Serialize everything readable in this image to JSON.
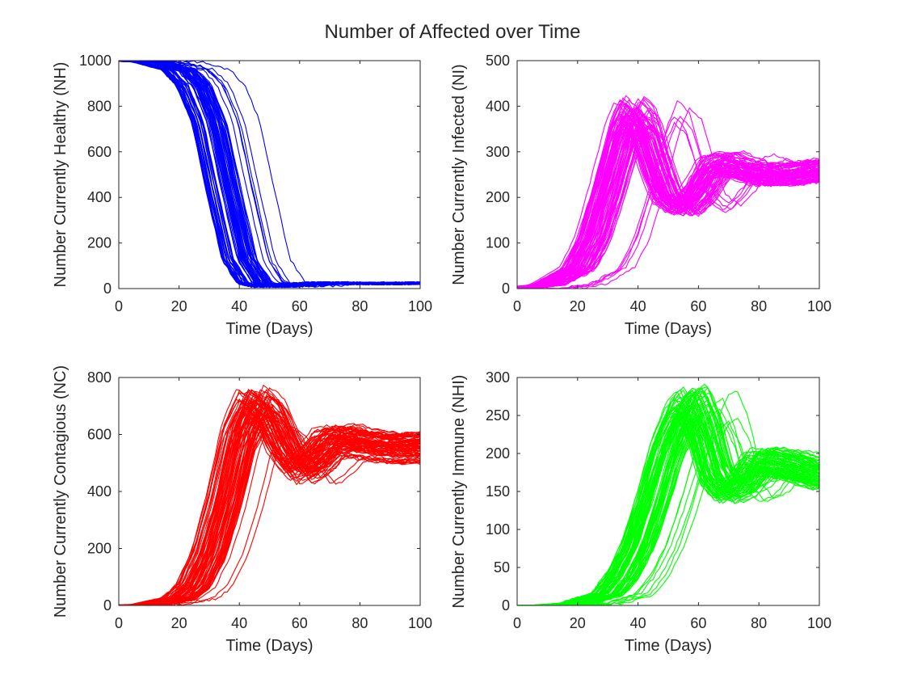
{
  "figure": {
    "title": "Number of Affected over Time"
  },
  "chart_data": [
    {
      "type": "line",
      "xlabel": "Time (Days)",
      "ylabel": "Number Currently Healthy (NH)",
      "xlim": [
        0,
        100
      ],
      "ylim": [
        0,
        1000
      ],
      "xticks": [
        0,
        20,
        40,
        60,
        80,
        100
      ],
      "yticks": [
        0,
        200,
        400,
        600,
        800,
        1000
      ],
      "grid": false,
      "color": "#0000ff",
      "series_count": 80,
      "representative_series": {
        "x": [
          0,
          10,
          20,
          25,
          30,
          35,
          40,
          45,
          50,
          55,
          60,
          70,
          80,
          90,
          100
        ],
        "y": [
          1000,
          995,
          960,
          890,
          730,
          420,
          130,
          25,
          10,
          12,
          20,
          25,
          22,
          22,
          24
        ]
      }
    },
    {
      "type": "line",
      "xlabel": "Time (Days)",
      "ylabel": "Number Currently Infected (NI)",
      "xlim": [
        0,
        100
      ],
      "ylim": [
        0,
        500
      ],
      "xticks": [
        0,
        20,
        40,
        60,
        80,
        100
      ],
      "yticks": [
        0,
        100,
        200,
        300,
        400,
        500
      ],
      "grid": false,
      "color": "#ff00ff",
      "series_count": 80,
      "representative_series": {
        "x": [
          0,
          10,
          20,
          25,
          30,
          35,
          38,
          42,
          46,
          50,
          55,
          60,
          65,
          70,
          80,
          90,
          100
        ],
        "y": [
          0,
          8,
          45,
          110,
          220,
          340,
          385,
          360,
          270,
          200,
          175,
          210,
          265,
          275,
          250,
          250,
          260
        ]
      }
    },
    {
      "type": "line",
      "xlabel": "Time (Days)",
      "ylabel": "Number Currently Contagious (NC)",
      "xlim": [
        0,
        100
      ],
      "ylim": [
        0,
        800
      ],
      "xticks": [
        0,
        20,
        40,
        60,
        80,
        100
      ],
      "yticks": [
        0,
        200,
        400,
        600,
        800
      ],
      "grid": false,
      "color": "#ff0000",
      "series_count": 80,
      "representative_series": {
        "x": [
          0,
          10,
          20,
          25,
          30,
          35,
          40,
          45,
          50,
          55,
          60,
          65,
          70,
          75,
          80,
          90,
          100
        ],
        "y": [
          0,
          3,
          25,
          70,
          180,
          360,
          590,
          700,
          660,
          540,
          470,
          510,
          570,
          580,
          565,
          550,
          555
        ]
      }
    },
    {
      "type": "line",
      "xlabel": "Time (Days)",
      "ylabel": "Number Currently Immune (NHI)",
      "xlim": [
        0,
        100
      ],
      "ylim": [
        0,
        300
      ],
      "xticks": [
        0,
        20,
        40,
        60,
        80,
        100
      ],
      "yticks": [
        0,
        50,
        100,
        150,
        200,
        250,
        300
      ],
      "grid": false,
      "color": "#00ff00",
      "series_count": 80,
      "representative_series": {
        "x": [
          0,
          10,
          20,
          30,
          35,
          40,
          45,
          50,
          55,
          58,
          62,
          66,
          70,
          75,
          80,
          90,
          100
        ],
        "y": [
          0,
          0,
          3,
          15,
          40,
          80,
          140,
          210,
          255,
          265,
          230,
          170,
          150,
          160,
          190,
          185,
          170
        ]
      }
    }
  ]
}
